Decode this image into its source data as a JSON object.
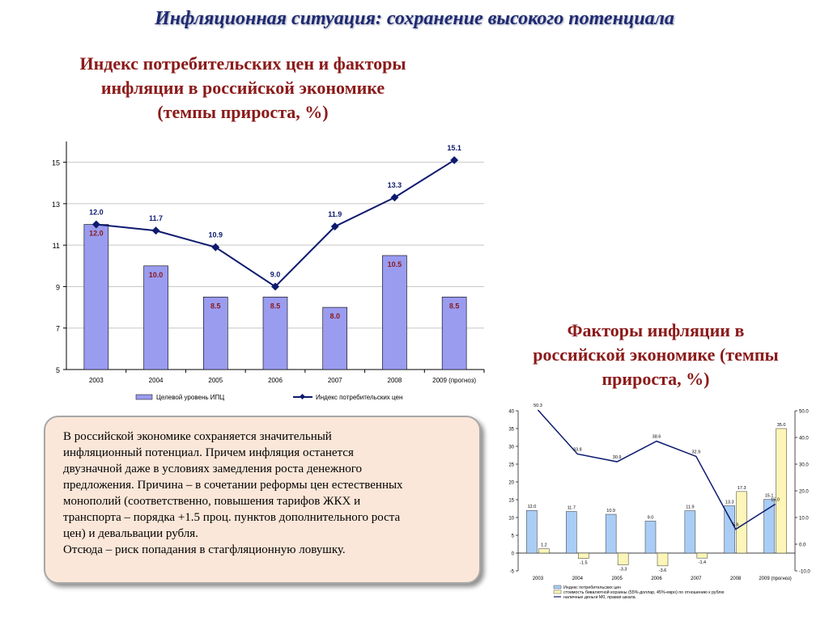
{
  "header": {
    "title": "Инфляционная ситуация: сохранение высокого потенциала"
  },
  "chart1_heading": [
    "Индекс потребительских цен и факторы",
    "инфляции в российской экономике",
    "(темпы прироста, %)"
  ],
  "chart2_heading": [
    "Факторы инфляции в",
    "российской экономике (темпы",
    "прироста, %)"
  ],
  "note": {
    "lines": [
      "В российской экономике сохраняется значительный",
      "инфляционный потенциал. Причем инфляция останется",
      "двузначной даже в условиях замедления роста денежного",
      "предложения. Причина – в сочетании реформы цен естественных",
      "монополий (соответственно, повышения тарифов ЖКХ и",
      "транспорта – порядка +1.5 проц. пунктов дополнительного роста",
      "цен) и девальвации рубля.",
      "Отсюда – риск попадания в стагфляционную ловушку."
    ]
  },
  "colors": {
    "bar": "#9a9cf0",
    "line": "#0d1a6e",
    "blue_bar": "#a9cdf5",
    "yellow_bar": "#fdf6b8",
    "title_red": "#8b1a1a",
    "header_blue": "#1f2a70"
  },
  "chart_data": [
    {
      "type": "bar",
      "categories": [
        "2003",
        "2004",
        "2005",
        "2006",
        "2007",
        "2008",
        "2009 (прогноз)"
      ],
      "series": [
        {
          "name": "Целевой уровень ИПЦ",
          "type": "bar",
          "values": [
            12.0,
            10.0,
            8.5,
            8.5,
            8.0,
            10.5,
            8.5
          ]
        },
        {
          "name": "Индекс потребительских цен",
          "type": "line",
          "values": [
            12.0,
            11.7,
            10.9,
            9.0,
            11.9,
            13.3,
            15.1
          ]
        }
      ],
      "yticks": [
        "5",
        "7",
        "9",
        "11",
        "13",
        "15"
      ],
      "ylim": [
        5,
        16
      ],
      "grid": true,
      "legend": "bottom"
    },
    {
      "type": "bar",
      "categories": [
        "2003",
        "2004",
        "2005",
        "2006",
        "2007",
        "2008",
        "2009 (прогноз)"
      ],
      "series": [
        {
          "name": "Индекс потребительских цен",
          "type": "bar",
          "axis": "left",
          "values": [
            12.0,
            11.7,
            10.9,
            9.0,
            11.9,
            13.3,
            15.1
          ]
        },
        {
          "name": "стоимость бивалютной корзины (55%-доллар, 45%-евро) по отношению к рублю",
          "type": "bar",
          "axis": "left",
          "values": [
            1.2,
            -1.5,
            -3.3,
            -3.6,
            -1.4,
            17.3,
            35.0
          ]
        },
        {
          "name": "наличные деньги М0, правая шкала",
          "type": "line",
          "axis": "right",
          "values": [
            50.3,
            33.8,
            30.9,
            38.6,
            32.9,
            5.6,
            15.0
          ]
        }
      ],
      "yticks_left": [
        "-5",
        "0",
        "5",
        "10",
        "15",
        "20",
        "25",
        "30",
        "35",
        "40"
      ],
      "yticks_right": [
        "-10.0",
        "0.0",
        "10.0",
        "20.0",
        "30.0",
        "40.0",
        "50.0"
      ],
      "ylim_left": [
        -5,
        40
      ],
      "ylim_right": [
        -10,
        50
      ],
      "legend": "bottom"
    }
  ]
}
